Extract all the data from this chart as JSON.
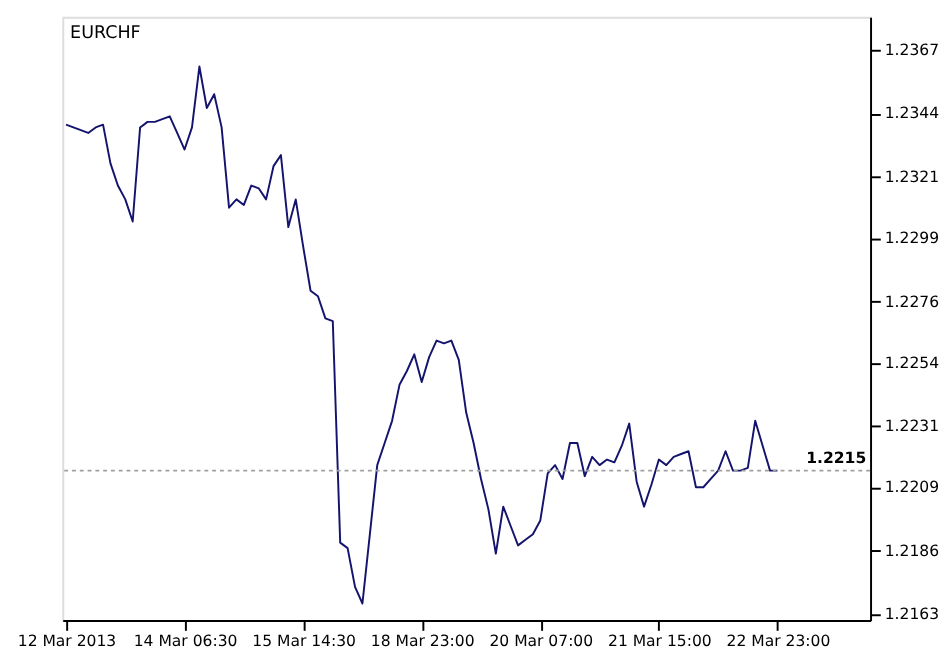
{
  "chart_data": {
    "type": "line",
    "title": "EURCHF",
    "categories": [
      "12 Mar 2013",
      null,
      null,
      null,
      null,
      null,
      null,
      null,
      null,
      null,
      null,
      null,
      null,
      null,
      null,
      null,
      "14 Mar 06:30",
      null,
      null,
      null,
      null,
      null,
      null,
      null,
      null,
      null,
      null,
      null,
      null,
      null,
      null,
      null,
      "15 Mar 14:30",
      null,
      null,
      null,
      null,
      null,
      null,
      null,
      null,
      null,
      null,
      null,
      null,
      null,
      null,
      null,
      "18 Mar 23:00",
      null,
      null,
      null,
      null,
      null,
      null,
      null,
      null,
      null,
      null,
      null,
      null,
      null,
      null,
      null,
      "20 Mar 07:00",
      null,
      null,
      null,
      null,
      null,
      null,
      null,
      null,
      null,
      null,
      null,
      null,
      null,
      null,
      null,
      "21 Mar 15:00",
      null,
      null,
      null,
      null,
      null,
      null,
      null,
      null,
      null,
      null,
      null,
      null,
      null,
      null,
      null,
      "22 Mar 23:00",
      null,
      null,
      null,
      null,
      null,
      null,
      null,
      null,
      null,
      null,
      null,
      null
    ],
    "series": [
      {
        "color": "#14146e",
        "values": [
          1.234,
          1.2339,
          1.2338,
          1.2337,
          1.2339,
          1.234,
          1.2326,
          1.2318,
          1.2313,
          1.2305,
          1.2339,
          1.2341,
          1.2341,
          1.2342,
          1.2343,
          1.2337,
          1.2331,
          1.2339,
          1.2361,
          1.2346,
          1.2351,
          1.2339,
          1.231,
          1.2313,
          1.2311,
          1.2318,
          1.2317,
          1.2313,
          1.2325,
          1.2329,
          1.2303,
          1.2313,
          1.2296,
          1.228,
          1.2278,
          1.227,
          1.2269,
          1.2189,
          1.2187,
          1.2173,
          1.2167,
          1.2192,
          1.2217,
          1.2225,
          1.2233,
          1.2246,
          1.2251,
          1.2257,
          1.2247,
          1.2256,
          1.2262,
          1.2261,
          1.2262,
          1.2255,
          1.2236,
          1.2225,
          1.2212,
          1.2201,
          1.2185,
          1.2202,
          1.2195,
          1.2188,
          1.219,
          1.2192,
          1.2197,
          1.2214,
          1.2217,
          1.2212,
          1.2225,
          1.2225,
          1.2213,
          1.222,
          1.2217,
          1.2219,
          1.2218,
          1.2224,
          1.2232,
          1.2211,
          1.2202,
          1.221,
          1.2219,
          1.2217,
          1.222,
          1.2221,
          1.2222,
          1.2209,
          1.2209,
          1.2212,
          1.2215,
          1.2222,
          1.2215,
          1.2215,
          1.2216,
          1.2233,
          1.2224,
          1.2215,
          1.2215,
          null,
          null,
          null,
          null,
          null,
          null,
          null,
          null,
          null,
          null,
          null,
          null
        ]
      }
    ],
    "ylim": [
      1.2161,
      1.2379
    ],
    "yticks": [
      1.2163,
      1.2186,
      1.2209,
      1.2231,
      1.2254,
      1.2276,
      1.2299,
      1.2321,
      1.2344,
      1.2367
    ],
    "ref_lines": [
      {
        "axis": "y",
        "value": 1.2215,
        "label": "1.2215",
        "color": "#a0a0a0",
        "line_style": "dotted"
      }
    ],
    "grid": false
  }
}
